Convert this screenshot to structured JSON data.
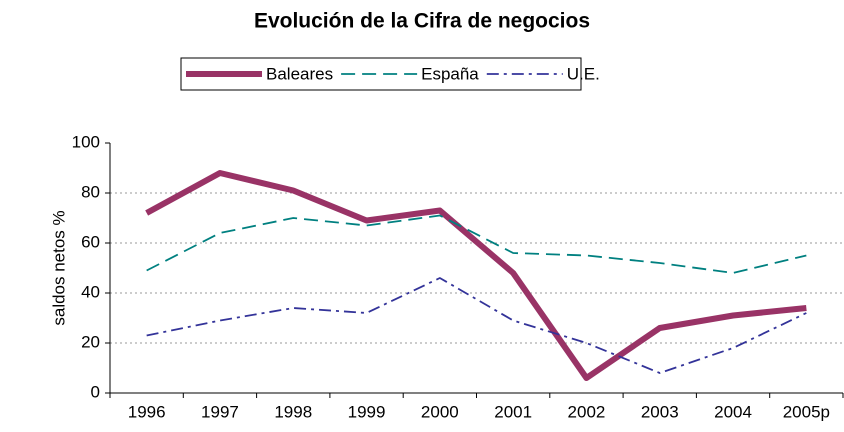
{
  "chart_data": {
    "type": "line",
    "title": "Evolución de la Cifra de negocios",
    "y_label": "saldos netos %",
    "categories": [
      "1996",
      "1997",
      "1998",
      "1999",
      "2000",
      "2001",
      "2002",
      "2003",
      "2004",
      "2005p"
    ],
    "series": [
      {
        "name": "Baleares",
        "color": "#993366",
        "values": [
          72,
          88,
          81,
          69,
          73,
          48,
          6,
          26,
          31,
          34
        ]
      },
      {
        "name": "España",
        "color": "#008080",
        "values": [
          49,
          64,
          70,
          67,
          71,
          56,
          55,
          52,
          48,
          55
        ]
      },
      {
        "name": "U.E.",
        "color": "#333399",
        "values": [
          23,
          29,
          34,
          32,
          46,
          29,
          20,
          8,
          18,
          32
        ]
      }
    ],
    "ylim": [
      0,
      100
    ],
    "yticks": [
      0,
      20,
      40,
      60,
      80,
      100
    ],
    "grid": true,
    "legend": "top"
  }
}
